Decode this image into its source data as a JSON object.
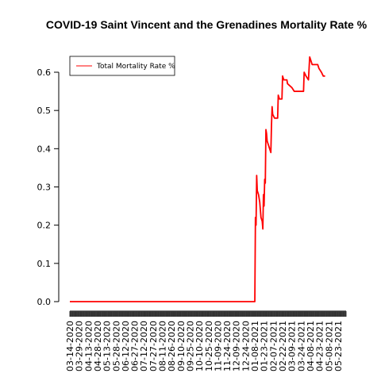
{
  "chart_data": {
    "type": "line",
    "title": "COVID-19 Saint Vincent and the Grenadines Mortality Rate %",
    "xlabel": "",
    "ylabel": "",
    "ylim": [
      0,
      0.64
    ],
    "y_ticks": [
      0.0,
      0.1,
      0.2,
      0.3,
      0.4,
      0.5,
      0.6
    ],
    "y_tick_labels": [
      "0.0",
      "0.1",
      "0.2",
      "0.3",
      "0.4",
      "0.5",
      "0.6"
    ],
    "x_range": [
      "03-14-2020",
      "06-05-2021"
    ],
    "x_tick_labels": [
      "03-14-2020",
      "03-29-2020",
      "04-13-2020",
      "04-28-2020",
      "05-13-2020",
      "05-28-2020",
      "06-12-2020",
      "06-27-2020",
      "07-12-2020",
      "07-27-2020",
      "08-11-2020",
      "08-26-2020",
      "09-10-2020",
      "09-25-2020",
      "10-10-2020",
      "10-25-2020",
      "11-09-2020",
      "11-24-2020",
      "12-09-2020",
      "12-24-2020",
      "01-08-2021",
      "01-23-2021",
      "02-07-2021",
      "02-22-2021",
      "03-09-2021",
      "03-24-2021",
      "04-08-2021",
      "04-23-2021",
      "05-08-2021",
      "05-23-2021"
    ],
    "grid": false,
    "legend_position": "top-left",
    "series": [
      {
        "name": "Total Mortality Rate %",
        "color": "#ff0000",
        "points": [
          [
            "03-14-2020",
            0.0
          ],
          [
            "01-08-2021",
            0.0
          ],
          [
            "01-09-2021",
            0.22
          ],
          [
            "01-10-2021",
            0.2
          ],
          [
            "01-11-2021",
            0.33
          ],
          [
            "01-12-2021",
            0.29
          ],
          [
            "01-14-2021",
            0.28
          ],
          [
            "01-16-2021",
            0.26
          ],
          [
            "01-18-2021",
            0.22
          ],
          [
            "01-20-2021",
            0.21
          ],
          [
            "01-21-2021",
            0.19
          ],
          [
            "01-22-2021",
            0.28
          ],
          [
            "01-23-2021",
            0.25
          ],
          [
            "01-24-2021",
            0.32
          ],
          [
            "01-25-2021",
            0.31
          ],
          [
            "01-26-2021",
            0.45
          ],
          [
            "01-27-2021",
            0.44
          ],
          [
            "01-28-2021",
            0.42
          ],
          [
            "01-30-2021",
            0.41
          ],
          [
            "02-01-2021",
            0.4
          ],
          [
            "02-03-2021",
            0.39
          ],
          [
            "02-04-2021",
            0.46
          ],
          [
            "02-05-2021",
            0.51
          ],
          [
            "02-06-2021",
            0.49
          ],
          [
            "02-09-2021",
            0.48
          ],
          [
            "02-14-2021",
            0.48
          ],
          [
            "02-15-2021",
            0.54
          ],
          [
            "02-17-2021",
            0.53
          ],
          [
            "02-21-2021",
            0.53
          ],
          [
            "02-22-2021",
            0.59
          ],
          [
            "02-24-2021",
            0.58
          ],
          [
            "03-01-2021",
            0.58
          ],
          [
            "03-02-2021",
            0.57
          ],
          [
            "03-09-2021",
            0.56
          ],
          [
            "03-13-2021",
            0.55
          ],
          [
            "03-28-2021",
            0.55
          ],
          [
            "03-29-2021",
            0.6
          ],
          [
            "04-01-2021",
            0.59
          ],
          [
            "04-05-2021",
            0.58
          ],
          [
            "04-06-2021",
            0.61
          ],
          [
            "04-07-2021",
            0.64
          ],
          [
            "04-09-2021",
            0.63
          ],
          [
            "04-11-2021",
            0.62
          ],
          [
            "04-20-2021",
            0.62
          ],
          [
            "04-22-2021",
            0.61
          ],
          [
            "04-26-2021",
            0.6
          ],
          [
            "04-29-2021",
            0.59
          ],
          [
            "05-02-2021",
            0.59
          ]
        ]
      }
    ]
  }
}
